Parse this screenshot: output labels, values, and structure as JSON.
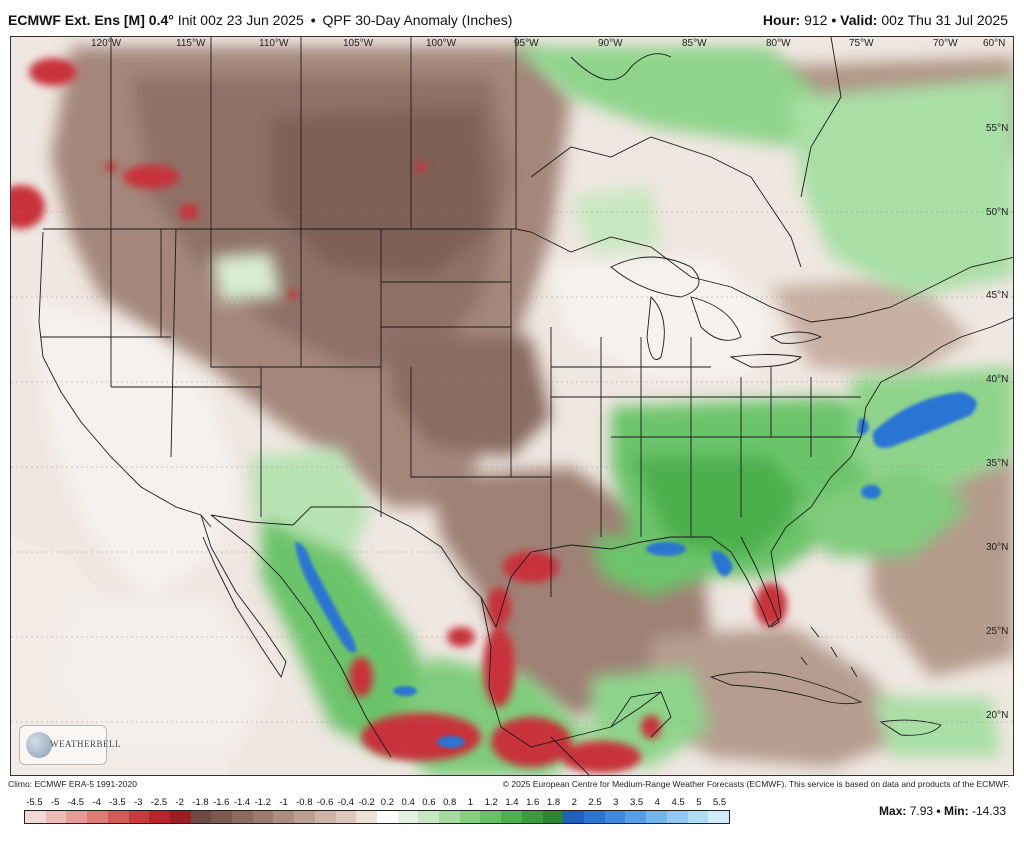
{
  "header": {
    "model": "ECMWF Ext. Ens [M]",
    "resolution": "0.4°",
    "init": "Init 00z 23 Jun 2025",
    "separator": "•",
    "product": "QPF 30-Day Anomaly (Inches)",
    "hour_label": "Hour:",
    "hour_value": "912",
    "valid_label": "Valid:",
    "valid_value": "00z Thu 31 Jul 2025"
  },
  "map": {
    "lon_labels": [
      "120°W",
      "115°W",
      "110°W",
      "105°W",
      "100°W",
      "95°W",
      "90°W",
      "85°W",
      "80°W",
      "75°W",
      "70°W",
      "60°N"
    ],
    "lat_labels": [
      "55°N",
      "50°N",
      "45°N",
      "40°N",
      "35°N",
      "30°N",
      "25°N",
      "20°N"
    ]
  },
  "logo": {
    "text": "WEATHERBELL"
  },
  "footer": {
    "climo": "Climo: ECMWF ERA-5 1991-2020",
    "copyright": "© 2025 European Centre for Medium-Range Weather Forecasts (ECMWF). This service is based on data and products of the ECMWF."
  },
  "colorbar": {
    "labels": [
      "-5.5",
      "-5",
      "-4.5",
      "-4",
      "-3.5",
      "-3",
      "-2.5",
      "-2",
      "-1.8",
      "-1.6",
      "-1.4",
      "-1.2",
      "-1",
      "-0.8",
      "-0.6",
      "-0.4",
      "-0.2",
      "0.2",
      "0.4",
      "0.6",
      "0.8",
      "1",
      "1.2",
      "1.4",
      "1.6",
      "1.8",
      "2",
      "2.5",
      "3",
      "3.5",
      "4",
      "4.5",
      "5",
      "5.5"
    ],
    "colors": [
      "#f2d9d5",
      "#eebcb7",
      "#e89b96",
      "#df7a76",
      "#d45a58",
      "#c83b3c",
      "#b8232a",
      "#9e1b22",
      "#6e4a44",
      "#7d5a50",
      "#8c6a5e",
      "#9c7b6d",
      "#ac8c7e",
      "#bd9f91",
      "#cdb3a5",
      "#ddc8bb",
      "#ede0d6",
      "#ffffff",
      "#e4f3e1",
      "#c6e8c0",
      "#a6dba0",
      "#86cf80",
      "#66c163",
      "#4cb04c",
      "#3a9a3e",
      "#2c8533",
      "#1e5fbf",
      "#2a74d4",
      "#3b8ae0",
      "#569fe8",
      "#72b4ee",
      "#90c8f3",
      "#b0dbf7",
      "#d0ecfb"
    ]
  },
  "stats": {
    "max_label": "Max:",
    "max_value": "7.93",
    "min_label": "Min:",
    "min_value": "-14.33",
    "separator": "•"
  }
}
